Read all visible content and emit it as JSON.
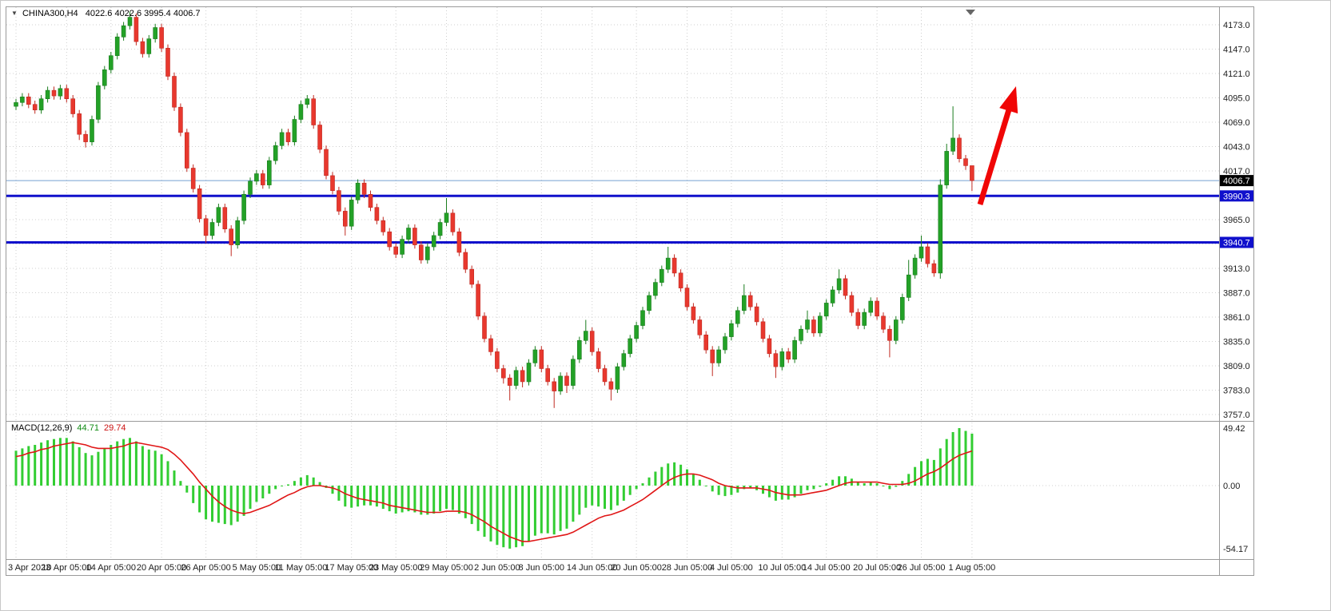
{
  "header": {
    "marker_icon": "▼",
    "symbol": "CHINA300,H4",
    "ohlc": "4022.6 4022.6 3995.4 4006.7"
  },
  "macd_label": {
    "name": "MACD(12,26,9)",
    "main": "44.71",
    "signal": "29.74"
  },
  "colors": {
    "up_candle": "#23a127",
    "up_wick": "#1b7d1e",
    "down_candle": "#e8382e",
    "down_wick": "#c02a22",
    "macd_histogram": "#32cd32",
    "macd_signal": "#e01616",
    "hline_blue": "#1010cc",
    "bid_line": "#74a0d0",
    "grid": "#cfcfcf",
    "axis_text": "#1c1c1c",
    "arrow_red": "#f00606",
    "current_badge_bg": "#000000"
  },
  "chart_data": {
    "type": "candlestick",
    "title": "CHINA300,H4",
    "symbol": "CHINA300",
    "timeframe": "H4",
    "current_bar_ohlc": [
      4022.6,
      4022.6,
      3995.4,
      4006.7
    ],
    "price_axis_ticks": [
      4173,
      4147,
      4121,
      4095,
      4069,
      4043,
      4017,
      3991,
      3965,
      3939,
      3913,
      3887,
      3861,
      3835,
      3809,
      3783,
      3757
    ],
    "price_axis_hidden_ticks": [
      3991,
      3939
    ],
    "price_badges": [
      {
        "text": "4006.7",
        "price": 4006.7,
        "bg": "#000000"
      },
      {
        "text": "3990.3",
        "price": 3990.3,
        "bg": "#1010cc"
      },
      {
        "text": "3940.7",
        "price": 3940.7,
        "bg": "#1010cc"
      }
    ],
    "hlines": [
      {
        "price": 3990.3,
        "color": "#1010cc",
        "width": 3
      },
      {
        "price": 3940.7,
        "color": "#1010cc",
        "width": 3
      }
    ],
    "bid_line_price": 4006.7,
    "x_labels": [
      "3 Apr 2023",
      "10 Apr 05:00",
      "14 Apr 05:00",
      "20 Apr 05:00",
      "26 Apr 05:00",
      "5 May 05:00",
      "11 May 05:00",
      "17 May 05:00",
      "23 May 05:00",
      "29 May 05:00",
      "2 Jun 05:00",
      "8 Jun 05:00",
      "14 Jun 05:00",
      "20 Jun 05:00",
      "28 Jun 05:00",
      "4 Jul 05:00",
      "10 Jul 05:00",
      "14 Jul 05:00",
      "20 Jul 05:00",
      "26 Jul 05:00",
      "1 Aug 05:00"
    ],
    "candles": [
      [
        4086,
        4094,
        4082,
        4090
      ],
      [
        4090,
        4100,
        4086,
        4096
      ],
      [
        4096,
        4100,
        4084,
        4088
      ],
      [
        4088,
        4092,
        4078,
        4082
      ],
      [
        4082,
        4098,
        4078,
        4094
      ],
      [
        4094,
        4107,
        4090,
        4103
      ],
      [
        4103,
        4107,
        4093,
        4097
      ],
      [
        4097,
        4109,
        4093,
        4105
      ],
      [
        4105,
        4109,
        4090,
        4094
      ],
      [
        4094,
        4098,
        4074,
        4078
      ],
      [
        4078,
        4082,
        4050,
        4056
      ],
      [
        4056,
        4060,
        4042,
        4048
      ],
      [
        4048,
        4076,
        4044,
        4072
      ],
      [
        4072,
        4112,
        4068,
        4108
      ],
      [
        4108,
        4129,
        4104,
        4125
      ],
      [
        4125,
        4144,
        4121,
        4140
      ],
      [
        4140,
        4164,
        4136,
        4160
      ],
      [
        4160,
        4176,
        4156,
        4172
      ],
      [
        4172,
        4187,
        4168,
        4181
      ],
      [
        4181,
        4185,
        4151,
        4155
      ],
      [
        4155,
        4159,
        4138,
        4142
      ],
      [
        4142,
        4162,
        4138,
        4158
      ],
      [
        4158,
        4174,
        4154,
        4170
      ],
      [
        4170,
        4174,
        4144,
        4148
      ],
      [
        4148,
        4152,
        4114,
        4118
      ],
      [
        4118,
        4122,
        4081,
        4085
      ],
      [
        4085,
        4089,
        4054,
        4058
      ],
      [
        4058,
        4062,
        4016,
        4020
      ],
      [
        4020,
        4024,
        3994,
        3998
      ],
      [
        3998,
        4002,
        3962,
        3966
      ],
      [
        3966,
        3970,
        3940,
        3948
      ],
      [
        3948,
        3966,
        3944,
        3962
      ],
      [
        3962,
        3982,
        3958,
        3978
      ],
      [
        3978,
        3982,
        3951,
        3955
      ],
      [
        3955,
        3959,
        3926,
        3938
      ],
      [
        3938,
        3968,
        3934,
        3964
      ],
      [
        3964,
        3996,
        3960,
        3992
      ],
      [
        3992,
        4010,
        3988,
        4006
      ],
      [
        4006,
        4018,
        4002,
        4014
      ],
      [
        4014,
        4018,
        3998,
        4002
      ],
      [
        4002,
        4032,
        3998,
        4028
      ],
      [
        4028,
        4048,
        4024,
        4044
      ],
      [
        4044,
        4062,
        4040,
        4058
      ],
      [
        4058,
        4062,
        4044,
        4048
      ],
      [
        4048,
        4076,
        4044,
        4072
      ],
      [
        4072,
        4092,
        4068,
        4088
      ],
      [
        4088,
        4098,
        4084,
        4094
      ],
      [
        4094,
        4098,
        4062,
        4066
      ],
      [
        4066,
        4070,
        4036,
        4040
      ],
      [
        4040,
        4044,
        4008,
        4012
      ],
      [
        4012,
        4016,
        3992,
        3996
      ],
      [
        3996,
        4000,
        3970,
        3974
      ],
      [
        3974,
        3978,
        3948,
        3958
      ],
      [
        3958,
        3990,
        3954,
        3986
      ],
      [
        3986,
        4008,
        3982,
        4004
      ],
      [
        4004,
        4008,
        3988,
        3992
      ],
      [
        3992,
        3996,
        3974,
        3978
      ],
      [
        3978,
        3982,
        3960,
        3964
      ],
      [
        3964,
        3968,
        3948,
        3952
      ],
      [
        3952,
        3956,
        3932,
        3936
      ],
      [
        3936,
        3940,
        3924,
        3928
      ],
      [
        3928,
        3948,
        3924,
        3944
      ],
      [
        3944,
        3960,
        3940,
        3956
      ],
      [
        3956,
        3960,
        3934,
        3938
      ],
      [
        3938,
        3942,
        3918,
        3922
      ],
      [
        3922,
        3940,
        3918,
        3936
      ],
      [
        3936,
        3952,
        3932,
        3948
      ],
      [
        3948,
        3966,
        3944,
        3962
      ],
      [
        3962,
        3988,
        3958,
        3972
      ],
      [
        3972,
        3976,
        3948,
        3952
      ],
      [
        3952,
        3956,
        3926,
        3930
      ],
      [
        3930,
        3934,
        3908,
        3912
      ],
      [
        3912,
        3916,
        3892,
        3896
      ],
      [
        3896,
        3900,
        3858,
        3862
      ],
      [
        3862,
        3866,
        3834,
        3838
      ],
      [
        3838,
        3842,
        3820,
        3824
      ],
      [
        3824,
        3828,
        3802,
        3806
      ],
      [
        3806,
        3810,
        3790,
        3796
      ],
      [
        3796,
        3800,
        3772,
        3788
      ],
      [
        3788,
        3808,
        3784,
        3804
      ],
      [
        3804,
        3808,
        3786,
        3792
      ],
      [
        3792,
        3816,
        3788,
        3812
      ],
      [
        3812,
        3830,
        3808,
        3826
      ],
      [
        3826,
        3830,
        3802,
        3806
      ],
      [
        3806,
        3810,
        3788,
        3792
      ],
      [
        3792,
        3796,
        3764,
        3782
      ],
      [
        3782,
        3802,
        3778,
        3798
      ],
      [
        3798,
        3802,
        3780,
        3788
      ],
      [
        3788,
        3820,
        3784,
        3816
      ],
      [
        3816,
        3840,
        3812,
        3836
      ],
      [
        3836,
        3858,
        3832,
        3846
      ],
      [
        3846,
        3850,
        3820,
        3824
      ],
      [
        3824,
        3828,
        3802,
        3806
      ],
      [
        3806,
        3810,
        3788,
        3792
      ],
      [
        3792,
        3796,
        3772,
        3784
      ],
      [
        3784,
        3812,
        3780,
        3808
      ],
      [
        3808,
        3826,
        3804,
        3822
      ],
      [
        3822,
        3842,
        3818,
        3838
      ],
      [
        3838,
        3856,
        3834,
        3852
      ],
      [
        3852,
        3872,
        3848,
        3868
      ],
      [
        3868,
        3888,
        3864,
        3884
      ],
      [
        3884,
        3902,
        3880,
        3898
      ],
      [
        3898,
        3916,
        3894,
        3912
      ],
      [
        3912,
        3936,
        3908,
        3924
      ],
      [
        3924,
        3928,
        3904,
        3908
      ],
      [
        3908,
        3912,
        3888,
        3892
      ],
      [
        3892,
        3896,
        3868,
        3872
      ],
      [
        3872,
        3876,
        3854,
        3858
      ],
      [
        3858,
        3862,
        3838,
        3842
      ],
      [
        3842,
        3846,
        3822,
        3826
      ],
      [
        3826,
        3830,
        3798,
        3812
      ],
      [
        3812,
        3830,
        3808,
        3826
      ],
      [
        3826,
        3844,
        3822,
        3840
      ],
      [
        3840,
        3858,
        3836,
        3854
      ],
      [
        3854,
        3872,
        3850,
        3868
      ],
      [
        3868,
        3896,
        3864,
        3884
      ],
      [
        3884,
        3888,
        3868,
        3872
      ],
      [
        3872,
        3876,
        3852,
        3856
      ],
      [
        3856,
        3860,
        3834,
        3838
      ],
      [
        3838,
        3842,
        3818,
        3822
      ],
      [
        3822,
        3826,
        3796,
        3808
      ],
      [
        3808,
        3828,
        3804,
        3824
      ],
      [
        3824,
        3828,
        3812,
        3816
      ],
      [
        3816,
        3840,
        3812,
        3836
      ],
      [
        3836,
        3852,
        3832,
        3848
      ],
      [
        3848,
        3868,
        3844,
        3858
      ],
      [
        3858,
        3862,
        3840,
        3844
      ],
      [
        3844,
        3866,
        3840,
        3862
      ],
      [
        3862,
        3880,
        3858,
        3876
      ],
      [
        3876,
        3894,
        3872,
        3890
      ],
      [
        3890,
        3912,
        3886,
        3902
      ],
      [
        3902,
        3906,
        3880,
        3884
      ],
      [
        3884,
        3888,
        3862,
        3866
      ],
      [
        3866,
        3870,
        3848,
        3852
      ],
      [
        3852,
        3870,
        3848,
        3866
      ],
      [
        3866,
        3882,
        3862,
        3878
      ],
      [
        3878,
        3882,
        3858,
        3862
      ],
      [
        3862,
        3866,
        3844,
        3848
      ],
      [
        3848,
        3852,
        3818,
        3836
      ],
      [
        3836,
        3862,
        3832,
        3858
      ],
      [
        3858,
        3886,
        3854,
        3882
      ],
      [
        3882,
        3922,
        3878,
        3906
      ],
      [
        3906,
        3928,
        3902,
        3924
      ],
      [
        3924,
        3948,
        3920,
        3936
      ],
      [
        3936,
        3940,
        3914,
        3918
      ],
      [
        3918,
        3922,
        3904,
        3908
      ],
      [
        3908,
        4008,
        3902,
        4002
      ],
      [
        4002,
        4046,
        3998,
        4038
      ],
      [
        4038,
        4086,
        4034,
        4052
      ],
      [
        4052,
        4056,
        4026,
        4030
      ],
      [
        4030,
        4034,
        4018,
        4022.6
      ],
      [
        4022.6,
        4022.6,
        3995.4,
        4006.7
      ]
    ],
    "macd": {
      "label": "MACD(12,26,9)",
      "current_main": 44.71,
      "current_signal": 29.74,
      "axis_labels": [
        {
          "text": "49.42",
          "value": 49.42
        },
        {
          "text": "0.00",
          "value": 0
        },
        {
          "text": "-54.17",
          "value": -54.17
        }
      ],
      "histogram": [
        30,
        32,
        34,
        35,
        37,
        39,
        40,
        41,
        41,
        38,
        33,
        28,
        26,
        29,
        32,
        35,
        38,
        40,
        41,
        38,
        34,
        31,
        30,
        27,
        21,
        13,
        4,
        -6,
        -15,
        -23,
        -29,
        -31,
        -32,
        -33,
        -34,
        -31,
        -26,
        -20,
        -14,
        -11,
        -7,
        -3,
        0,
        1,
        4,
        7,
        9,
        7,
        3,
        -2,
        -7,
        -13,
        -18,
        -19,
        -18,
        -17,
        -17,
        -18,
        -20,
        -22,
        -24,
        -23,
        -22,
        -23,
        -25,
        -25,
        -24,
        -22,
        -20,
        -21,
        -24,
        -28,
        -33,
        -39,
        -44,
        -48,
        -51,
        -53,
        -54.17,
        -53,
        -52,
        -48,
        -43,
        -41,
        -41,
        -42,
        -39,
        -37,
        -31,
        -25,
        -19,
        -17,
        -18,
        -20,
        -21,
        -17,
        -13,
        -8,
        -3,
        2,
        7,
        12,
        16,
        19,
        20,
        18,
        14,
        10,
        5,
        0,
        -5,
        -8,
        -9,
        -8,
        -6,
        -3,
        -2,
        -4,
        -7,
        -10,
        -13,
        -12,
        -12,
        -10,
        -7,
        -4,
        -3,
        -1,
        2,
        5,
        8,
        8,
        6,
        3,
        2,
        3,
        2,
        0,
        -3,
        -1,
        4,
        10,
        16,
        21,
        23,
        22,
        32,
        40,
        46,
        49.42,
        47,
        44.71
      ],
      "signal": [
        25,
        26,
        28,
        29,
        31,
        32,
        34,
        35,
        36,
        37,
        36,
        35,
        33,
        32,
        32,
        32,
        33,
        34,
        36,
        37,
        36,
        35,
        34,
        33,
        31,
        27,
        22,
        16,
        10,
        3,
        -3,
        -9,
        -14,
        -18,
        -21,
        -23,
        -24,
        -23,
        -21,
        -19,
        -17,
        -14,
        -11,
        -8,
        -6,
        -3,
        -1,
        0,
        0,
        -1,
        -2,
        -4,
        -7,
        -9,
        -11,
        -12,
        -13,
        -14,
        -15,
        -17,
        -18,
        -19,
        -20,
        -21,
        -22,
        -23,
        -23,
        -23,
        -22,
        -22,
        -22,
        -23,
        -25,
        -28,
        -31,
        -35,
        -38,
        -41,
        -44,
        -46,
        -48,
        -48,
        -47,
        -46,
        -45,
        -44,
        -43,
        -42,
        -40,
        -37,
        -34,
        -31,
        -28,
        -26,
        -25,
        -23,
        -21,
        -18,
        -15,
        -12,
        -8,
        -4,
        0,
        4,
        7,
        9,
        10,
        10,
        9,
        7,
        5,
        2,
        0,
        -1,
        -2,
        -2,
        -2,
        -2,
        -3,
        -4,
        -6,
        -7,
        -8,
        -8,
        -8,
        -7,
        -6,
        -5,
        -4,
        -2,
        0,
        2,
        3,
        3,
        3,
        3,
        3,
        2,
        1,
        1,
        1,
        2,
        4,
        7,
        10,
        12,
        15,
        19,
        23,
        26,
        28,
        29.74
      ]
    },
    "arrow": {
      "color": "#f00606",
      "tail": [
        1218,
        247
      ],
      "tip": [
        1263,
        99
      ]
    }
  }
}
